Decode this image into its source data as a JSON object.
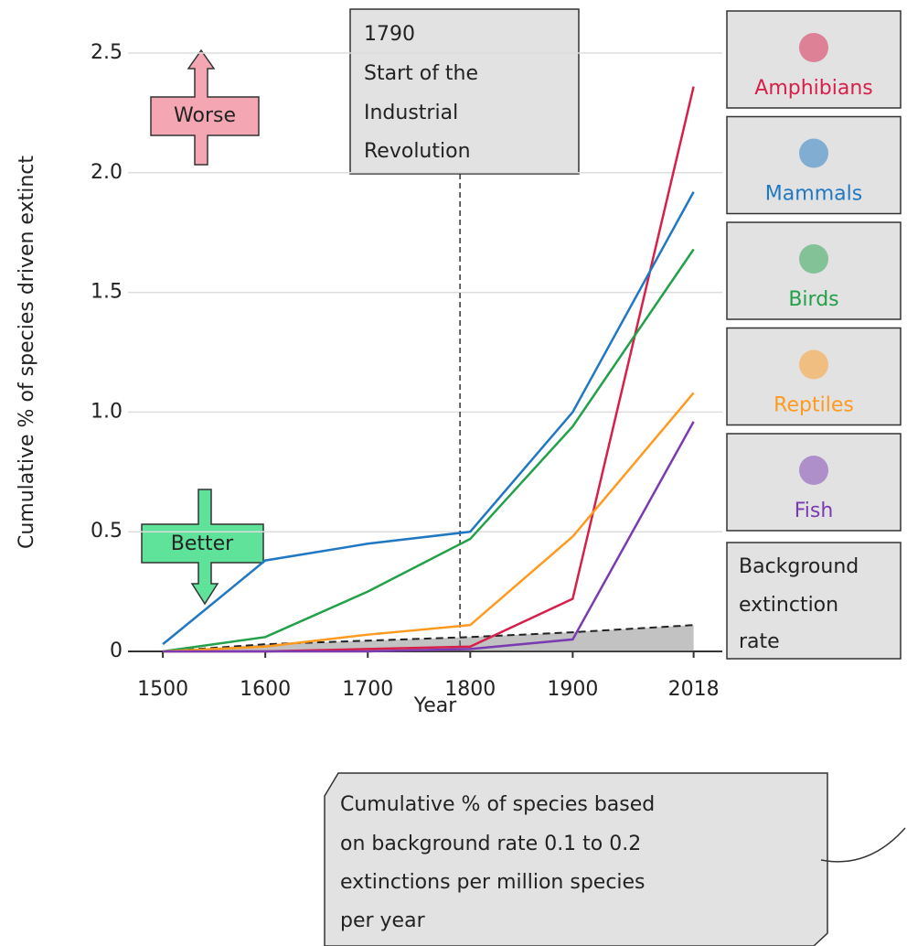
{
  "chart_data": {
    "type": "line",
    "x": [
      1500,
      1600,
      1700,
      1800,
      1900,
      2018
    ],
    "xlabel": "Year",
    "ylabel": "Cumulative % of species driven extinct",
    "xlim": [
      1466,
      2046
    ],
    "ylim": [
      0,
      2.5
    ],
    "xticks": [
      1500,
      1600,
      1700,
      1800,
      1900,
      2018
    ],
    "yticks": [
      0,
      0.5,
      {
        "value": 1,
        "label": "1.0"
      },
      1.5,
      {
        "value": 2,
        "label": "2.0"
      },
      2.5
    ],
    "grid": true,
    "series": [
      {
        "name": "Amphibians",
        "color": "#d6204a",
        "values": [
          0,
          0,
          0.01,
          0.02,
          0.22,
          2.36
        ]
      },
      {
        "name": "Mammals",
        "color": "#1f78c1",
        "values": [
          0.03,
          0.38,
          0.45,
          0.5,
          1.0,
          1.92
        ]
      },
      {
        "name": "Birds",
        "color": "#23a04a",
        "values": [
          0,
          0.06,
          0.25,
          0.47,
          0.94,
          1.68
        ]
      },
      {
        "name": "Reptiles",
        "color": "#ff9a1f",
        "values": [
          0,
          0.02,
          0.07,
          0.11,
          0.48,
          1.08
        ]
      },
      {
        "name": "Fish",
        "color": "#7a3bb0",
        "values": [
          0,
          0,
          0,
          0.01,
          0.05,
          0.96
        ]
      }
    ],
    "background": {
      "label": [
        "Background",
        "extinction",
        "rate"
      ],
      "color": "#777777",
      "values": [
        0,
        0.03,
        0.045,
        0.06,
        0.08,
        0.11
      ]
    },
    "event": {
      "x": 1790,
      "text": [
        "Start of the",
        "Industrial",
        "Revolution"
      ]
    },
    "worse_label": "Worse",
    "better_label": "Better",
    "note": [
      "Cumulative % of species based",
      "on background rate 0.1 to 0.2",
      "extinctions per million species",
      "per year"
    ]
  }
}
